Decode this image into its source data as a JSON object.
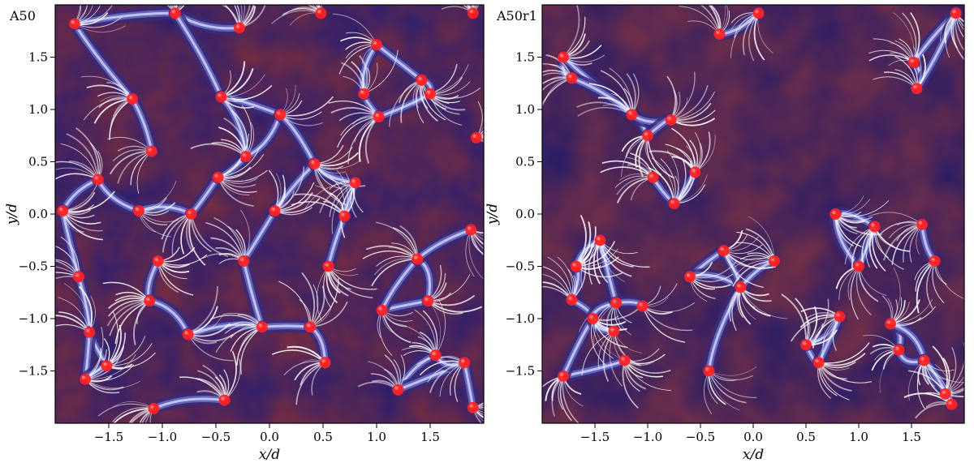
{
  "chart_data": [
    {
      "type": "heatmap",
      "panel_label": "A50",
      "xlabel": "x/d",
      "ylabel": "y/d",
      "xlim": [
        -2.0,
        2.0
      ],
      "ylim": [
        -2.0,
        2.0
      ],
      "xticks": [
        -1.5,
        -1.0,
        -0.5,
        0.0,
        0.5,
        1.0,
        1.5
      ],
      "yticks": [
        -1.5,
        -1.0,
        -0.5,
        0.0,
        0.5,
        1.0,
        1.5
      ],
      "xtick_labels": [
        "−1.5",
        "−1.0",
        "−0.5",
        "0.0",
        "0.5",
        "1.0",
        "1.5"
      ],
      "ytick_labels": [
        "−1.5",
        "−1.0",
        "−0.5",
        "0.0",
        "0.5",
        "1.0",
        "1.5"
      ],
      "colors": {
        "cells": "#7a2f3c",
        "lanes": "#3a2a7a",
        "lane_highlight": "#cfd3ff",
        "streamlines": "#ffffff",
        "markers": "#ff2020"
      },
      "markers": [
        [
          -1.93,
          0.03
        ],
        [
          -1.78,
          -0.6
        ],
        [
          -1.6,
          0.33
        ],
        [
          -1.82,
          1.82
        ],
        [
          -1.68,
          -1.13
        ],
        [
          -1.72,
          -1.58
        ],
        [
          -1.52,
          -1.45
        ],
        [
          -1.28,
          1.1
        ],
        [
          -1.1,
          0.6
        ],
        [
          -1.12,
          -0.83
        ],
        [
          -1.08,
          -1.86
        ],
        [
          -1.22,
          0.03
        ],
        [
          -1.04,
          -0.45
        ],
        [
          -0.88,
          1.92
        ],
        [
          -0.76,
          -1.15
        ],
        [
          -0.73,
          0.0
        ],
        [
          -0.45,
          1.12
        ],
        [
          -0.48,
          0.35
        ],
        [
          -0.42,
          -1.78
        ],
        [
          -0.28,
          1.78
        ],
        [
          -0.22,
          0.55
        ],
        [
          -0.24,
          -0.45
        ],
        [
          -0.07,
          -1.08
        ],
        [
          0.05,
          0.03
        ],
        [
          0.1,
          0.95
        ],
        [
          0.38,
          -1.08
        ],
        [
          0.42,
          0.48
        ],
        [
          0.52,
          -1.42
        ],
        [
          0.55,
          -0.5
        ],
        [
          0.7,
          -0.02
        ],
        [
          0.8,
          0.3
        ],
        [
          0.88,
          1.15
        ],
        [
          1.0,
          1.62
        ],
        [
          1.02,
          0.93
        ],
        [
          1.05,
          -0.92
        ],
        [
          1.2,
          -1.68
        ],
        [
          1.38,
          -0.43
        ],
        [
          1.48,
          -0.83
        ],
        [
          1.5,
          1.15
        ],
        [
          1.55,
          -1.35
        ],
        [
          1.42,
          1.28
        ],
        [
          1.82,
          -1.42
        ],
        [
          1.9,
          1.92
        ],
        [
          1.93,
          0.73
        ],
        [
          1.88,
          -0.15
        ],
        [
          1.9,
          -1.85
        ],
        [
          0.48,
          1.92
        ]
      ]
    },
    {
      "type": "heatmap",
      "panel_label": "A50r1",
      "xlabel": "x/d",
      "ylabel": "y/d",
      "xlim": [
        -2.0,
        2.0
      ],
      "ylim": [
        -2.0,
        2.0
      ],
      "xticks": [
        -1.5,
        -1.0,
        -0.5,
        0.0,
        0.5,
        1.0,
        1.5
      ],
      "yticks": [
        -1.5,
        -1.0,
        -0.5,
        0.0,
        0.5,
        1.0,
        1.5
      ],
      "xtick_labels": [
        "−1.5",
        "−1.0",
        "−0.5",
        "0.0",
        "0.5",
        "1.0",
        "1.5"
      ],
      "ytick_labels": [
        "−1.5",
        "−1.0",
        "−0.5",
        "0.0",
        "0.5",
        "1.0",
        "1.5"
      ],
      "colors": {
        "cells": "#7a2f3c",
        "lanes": "#3a2a7a",
        "lane_highlight": "#cfd3ff",
        "streamlines": "#ffffff",
        "markers": "#ff2020"
      },
      "markers": [
        [
          -1.8,
          1.5
        ],
        [
          -1.72,
          1.3
        ],
        [
          -1.68,
          -0.5
        ],
        [
          -1.72,
          -0.82
        ],
        [
          -1.8,
          -1.55
        ],
        [
          -1.52,
          -1.0
        ],
        [
          -1.45,
          -0.25
        ],
        [
          -1.3,
          -0.85
        ],
        [
          -1.32,
          -1.12
        ],
        [
          -1.22,
          -1.4
        ],
        [
          -1.05,
          -0.88
        ],
        [
          -1.15,
          0.95
        ],
        [
          -1.0,
          0.75
        ],
        [
          -0.95,
          0.35
        ],
        [
          -0.78,
          0.9
        ],
        [
          -0.75,
          0.1
        ],
        [
          -0.6,
          -0.6
        ],
        [
          -0.55,
          0.4
        ],
        [
          -0.42,
          -1.5
        ],
        [
          -0.32,
          1.72
        ],
        [
          -0.28,
          -0.35
        ],
        [
          -0.12,
          -0.7
        ],
        [
          0.05,
          1.92
        ],
        [
          0.2,
          -0.45
        ],
        [
          0.5,
          -1.25
        ],
        [
          0.62,
          -1.42
        ],
        [
          0.82,
          -0.98
        ],
        [
          0.78,
          0.0
        ],
        [
          1.0,
          -0.5
        ],
        [
          1.15,
          -0.12
        ],
        [
          1.3,
          -1.05
        ],
        [
          1.38,
          -1.3
        ],
        [
          1.52,
          1.45
        ],
        [
          1.55,
          1.2
        ],
        [
          1.6,
          -0.1
        ],
        [
          1.72,
          -0.45
        ],
        [
          1.82,
          -1.72
        ],
        [
          1.88,
          -1.82
        ],
        [
          1.92,
          1.92
        ],
        [
          1.62,
          -1.4
        ]
      ]
    }
  ]
}
